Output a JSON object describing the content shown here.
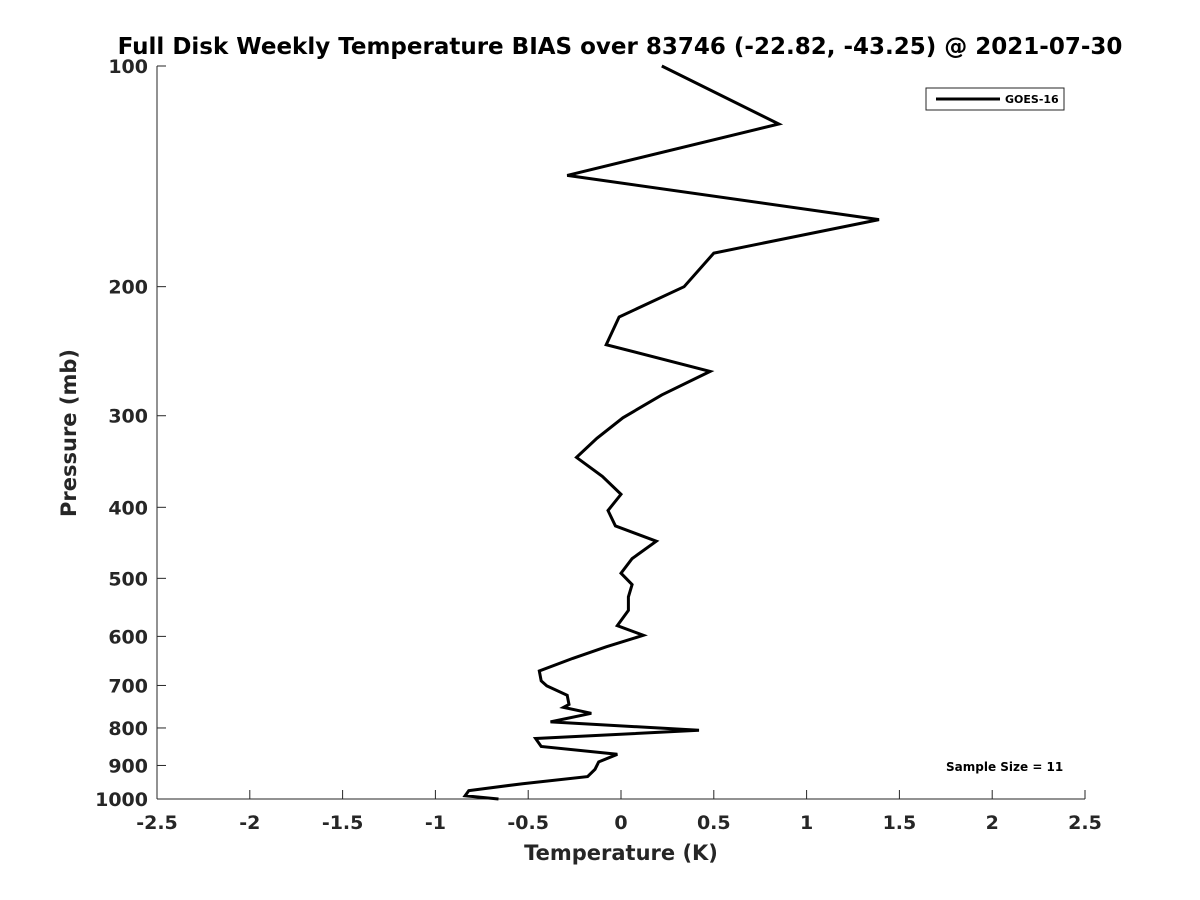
{
  "chart_data": {
    "type": "line",
    "title": "Full Disk Weekly Temperature BIAS over 83746 (-22.82, -43.25) @ 2021-07-30",
    "xlabel": "Temperature (K)",
    "ylabel": "Pressure (mb)",
    "xlim": [
      -2.5,
      2.5
    ],
    "ylim": [
      100,
      1000
    ],
    "y_scale": "log",
    "y_reversed": true,
    "grid": false,
    "legend_position": "top-right",
    "x_ticks": [
      -2.5,
      -2,
      -1.5,
      -1,
      -0.5,
      0,
      0.5,
      1,
      1.5,
      2,
      2.5
    ],
    "x_tick_labels": [
      "-2.5",
      "-2",
      "-1.5",
      "-1",
      "-0.5",
      "0",
      "0.5",
      "1",
      "1.5",
      "2",
      "2.5"
    ],
    "y_ticks": [
      100,
      200,
      300,
      400,
      500,
      600,
      700,
      800,
      900,
      1000
    ],
    "y_tick_labels": [
      "100",
      "200",
      "300",
      "400",
      "500",
      "600",
      "700",
      "800",
      "900",
      "1000"
    ],
    "series": [
      {
        "name": "GOES-16",
        "color": "#000000",
        "points": [
          {
            "x": 0.22,
            "y": 100
          },
          {
            "x": 0.85,
            "y": 120
          },
          {
            "x": -0.29,
            "y": 141
          },
          {
            "x": 1.39,
            "y": 162
          },
          {
            "x": 0.5,
            "y": 180
          },
          {
            "x": 0.34,
            "y": 200
          },
          {
            "x": -0.01,
            "y": 220
          },
          {
            "x": -0.08,
            "y": 240
          },
          {
            "x": 0.48,
            "y": 261
          },
          {
            "x": 0.22,
            "y": 281
          },
          {
            "x": 0.01,
            "y": 302
          },
          {
            "x": -0.13,
            "y": 322
          },
          {
            "x": -0.24,
            "y": 342
          },
          {
            "x": -0.1,
            "y": 363
          },
          {
            "x": 0.0,
            "y": 384
          },
          {
            "x": -0.07,
            "y": 404
          },
          {
            "x": -0.03,
            "y": 424
          },
          {
            "x": 0.19,
            "y": 445
          },
          {
            "x": 0.06,
            "y": 470
          },
          {
            "x": 0.0,
            "y": 492
          },
          {
            "x": 0.06,
            "y": 510
          },
          {
            "x": 0.04,
            "y": 530
          },
          {
            "x": 0.04,
            "y": 553
          },
          {
            "x": -0.02,
            "y": 580
          },
          {
            "x": 0.12,
            "y": 598
          },
          {
            "x": -0.08,
            "y": 620
          },
          {
            "x": -0.26,
            "y": 643
          },
          {
            "x": -0.44,
            "y": 669
          },
          {
            "x": -0.43,
            "y": 690
          },
          {
            "x": -0.4,
            "y": 701
          },
          {
            "x": -0.29,
            "y": 722
          },
          {
            "x": -0.28,
            "y": 743
          },
          {
            "x": -0.31,
            "y": 750
          },
          {
            "x": -0.16,
            "y": 764
          },
          {
            "x": -0.38,
            "y": 785
          },
          {
            "x": 0.42,
            "y": 806
          },
          {
            "x": -0.46,
            "y": 827
          },
          {
            "x": -0.43,
            "y": 848
          },
          {
            "x": -0.02,
            "y": 869
          },
          {
            "x": -0.12,
            "y": 890
          },
          {
            "x": -0.14,
            "y": 911
          },
          {
            "x": -0.18,
            "y": 932
          },
          {
            "x": -0.53,
            "y": 953
          },
          {
            "x": -0.82,
            "y": 974
          },
          {
            "x": -0.84,
            "y": 990
          },
          {
            "x": -0.66,
            "y": 1000
          }
        ]
      }
    ],
    "annotation": "Sample Size = 11"
  }
}
